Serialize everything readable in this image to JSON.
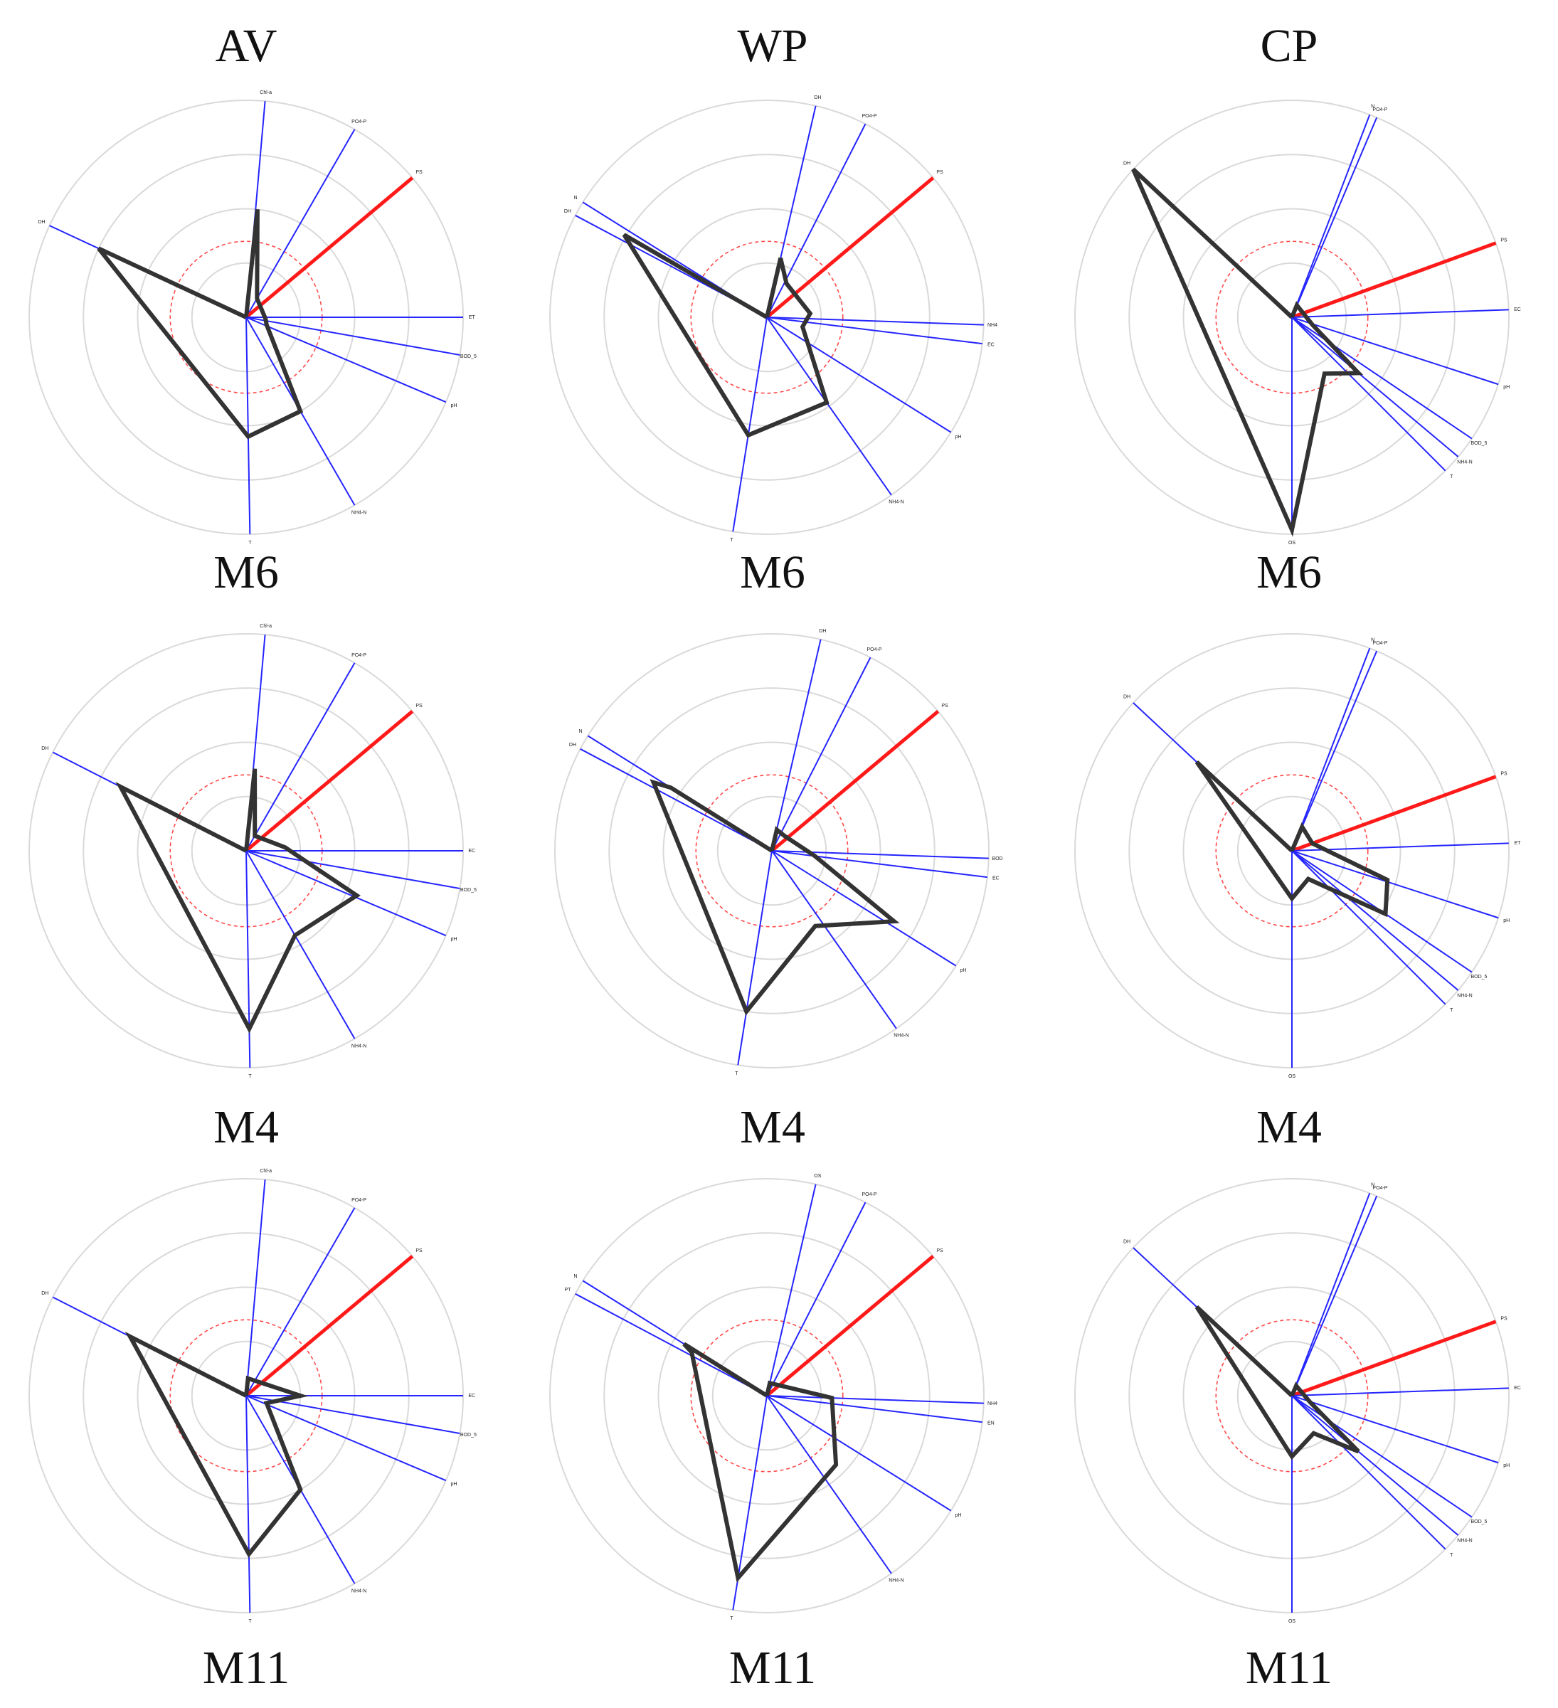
{
  "columns": [
    "AV",
    "WP",
    "CP"
  ],
  "row_labels": [
    "M6",
    "M4",
    "M11"
  ],
  "colors": {
    "grid": "#d9d9d9",
    "axis": "#2525ff",
    "highlight": "#ff1a1a",
    "polygon": "#333333",
    "threshold": "#ff4a4a"
  },
  "chart_data": [
    {
      "type": "radar",
      "column": "AV",
      "model": "M6",
      "highlight_axis": "PS",
      "axes": [
        {
          "name": "Chl-a",
          "angle": 85
        },
        {
          "name": "PO4-P",
          "angle": 60
        },
        {
          "name": "PS",
          "angle": 40
        },
        {
          "name": "ET",
          "angle": 0
        },
        {
          "name": "BOD_5",
          "angle": -10
        },
        {
          "name": "pH",
          "angle": -23
        },
        {
          "name": "NH4-N",
          "angle": -60
        },
        {
          "name": "T",
          "angle": -89
        },
        {
          "name": "DH",
          "angle": 155
        }
      ],
      "values": [
        {
          "angle": 84,
          "r": 0.5
        },
        {
          "angle": 60,
          "r": 0.1
        },
        {
          "angle": -5,
          "r": 0.09
        },
        {
          "angle": -20,
          "r": 0.1
        },
        {
          "angle": -60,
          "r": 0.5
        },
        {
          "angle": -89,
          "r": 0.55
        },
        {
          "angle": 155,
          "r": 0.75
        }
      ]
    },
    {
      "type": "radar",
      "column": "WP",
      "model": "M6",
      "highlight_axis": "PS",
      "axes": [
        {
          "name": "DH",
          "angle": 77
        },
        {
          "name": "PO4-P",
          "angle": 63
        },
        {
          "name": "PS",
          "angle": 40
        },
        {
          "name": "NH4",
          "angle": -2
        },
        {
          "name": "EC",
          "angle": -7
        },
        {
          "name": "pH",
          "angle": -32
        },
        {
          "name": "NH4-N",
          "angle": -55
        },
        {
          "name": "T",
          "angle": -99
        },
        {
          "name": "DH",
          "angle": 152
        },
        {
          "name": "N",
          "angle": 148
        }
      ],
      "values": [
        {
          "angle": 77,
          "r": 0.28
        },
        {
          "angle": 60,
          "r": 0.18
        },
        {
          "angle": 5,
          "r": 0.2
        },
        {
          "angle": -15,
          "r": 0.17
        },
        {
          "angle": -55,
          "r": 0.48
        },
        {
          "angle": -99,
          "r": 0.55
        },
        {
          "angle": 150,
          "r": 0.76
        }
      ]
    },
    {
      "type": "radar",
      "column": "CP",
      "model": "M6",
      "highlight_axis": "PS",
      "axes": [
        {
          "name": "N",
          "angle": 69
        },
        {
          "name": "PO4-P",
          "angle": 67
        },
        {
          "name": "PS",
          "angle": 20
        },
        {
          "name": "EC",
          "angle": 2
        },
        {
          "name": "pH",
          "angle": -18
        },
        {
          "name": "BOD_5",
          "angle": -34
        },
        {
          "name": "NH4-N",
          "angle": -40
        },
        {
          "name": "T",
          "angle": -45
        },
        {
          "name": "OS",
          "angle": -90
        },
        {
          "name": "DH",
          "angle": 137
        }
      ],
      "values": [
        {
          "angle": 68,
          "r": 0.06
        },
        {
          "angle": -20,
          "r": 0.1
        },
        {
          "angle": -40,
          "r": 0.4
        },
        {
          "angle": -60,
          "r": 0.3
        },
        {
          "angle": -90,
          "r": 0.98
        },
        {
          "angle": 137,
          "r": 1.0
        }
      ]
    },
    {
      "type": "radar",
      "column": "AV",
      "model": "M4",
      "highlight_axis": "PS",
      "axes": [
        {
          "name": "Chl-a",
          "angle": 85
        },
        {
          "name": "PO4-P",
          "angle": 60
        },
        {
          "name": "PS",
          "angle": 40
        },
        {
          "name": "EC",
          "angle": 0
        },
        {
          "name": "BOD_5",
          "angle": -10
        },
        {
          "name": "pH",
          "angle": -23
        },
        {
          "name": "NH4-N",
          "angle": -60
        },
        {
          "name": "T",
          "angle": -89
        },
        {
          "name": "DH",
          "angle": 153
        }
      ],
      "values": [
        {
          "angle": 84,
          "r": 0.38
        },
        {
          "angle": 60,
          "r": 0.08
        },
        {
          "angle": 5,
          "r": 0.18
        },
        {
          "angle": -22,
          "r": 0.55
        },
        {
          "angle": -60,
          "r": 0.45
        },
        {
          "angle": -89,
          "r": 0.82
        },
        {
          "angle": 153,
          "r": 0.65
        }
      ]
    },
    {
      "type": "radar",
      "column": "WP",
      "model": "M4",
      "highlight_axis": "PS",
      "axes": [
        {
          "name": "DH",
          "angle": 77
        },
        {
          "name": "PO4-P",
          "angle": 63
        },
        {
          "name": "PS",
          "angle": 40
        },
        {
          "name": "BOD",
          "angle": -2
        },
        {
          "name": "EC",
          "angle": -7
        },
        {
          "name": "pH",
          "angle": -32
        },
        {
          "name": "NH4-N",
          "angle": -55
        },
        {
          "name": "T",
          "angle": -99
        },
        {
          "name": "DH",
          "angle": 152
        },
        {
          "name": "N",
          "angle": 148
        }
      ],
      "values": [
        {
          "angle": 77,
          "r": 0.1
        },
        {
          "angle": 50,
          "r": 0.09
        },
        {
          "angle": -7,
          "r": 0.2
        },
        {
          "angle": -30,
          "r": 0.65
        },
        {
          "angle": -60,
          "r": 0.4
        },
        {
          "angle": -99,
          "r": 0.75
        },
        {
          "angle": 150,
          "r": 0.63
        },
        {
          "angle": 148,
          "r": 0.55
        }
      ]
    },
    {
      "type": "radar",
      "column": "CP",
      "model": "M4",
      "highlight_axis": "PS",
      "axes": [
        {
          "name": "N",
          "angle": 69
        },
        {
          "name": "PO4-P",
          "angle": 67
        },
        {
          "name": "PS",
          "angle": 20
        },
        {
          "name": "ET",
          "angle": 2
        },
        {
          "name": "pH",
          "angle": -18
        },
        {
          "name": "BOD_5",
          "angle": -34
        },
        {
          "name": "NH4-N",
          "angle": -40
        },
        {
          "name": "T",
          "angle": -45
        },
        {
          "name": "OS",
          "angle": -90
        },
        {
          "name": "DH",
          "angle": 137
        }
      ],
      "values": [
        {
          "angle": 67,
          "r": 0.12
        },
        {
          "angle": 20,
          "r": 0.1
        },
        {
          "angle": -17,
          "r": 0.46
        },
        {
          "angle": -34,
          "r": 0.52
        },
        {
          "angle": -60,
          "r": 0.15
        },
        {
          "angle": -90,
          "r": 0.22
        },
        {
          "angle": 137,
          "r": 0.6
        }
      ]
    },
    {
      "type": "radar",
      "column": "AV",
      "model": "M11",
      "highlight_axis": "PS",
      "axes": [
        {
          "name": "Chl-a",
          "angle": 85
        },
        {
          "name": "PO4-P",
          "angle": 60
        },
        {
          "name": "PS",
          "angle": 40
        },
        {
          "name": "EC",
          "angle": 0
        },
        {
          "name": "BOD_5",
          "angle": -10
        },
        {
          "name": "pH",
          "angle": -23
        },
        {
          "name": "NH4-N",
          "angle": -60
        },
        {
          "name": "T",
          "angle": -89
        },
        {
          "name": "DH",
          "angle": 153
        }
      ],
      "values": [
        {
          "angle": 84,
          "r": 0.08
        },
        {
          "angle": 0,
          "r": 0.25
        },
        {
          "angle": -20,
          "r": 0.1
        },
        {
          "angle": -60,
          "r": 0.5
        },
        {
          "angle": -89,
          "r": 0.73
        },
        {
          "angle": 153,
          "r": 0.6
        }
      ]
    },
    {
      "type": "radar",
      "column": "WP",
      "model": "M11",
      "highlight_axis": "PS",
      "axes": [
        {
          "name": "OS",
          "angle": 77
        },
        {
          "name": "PO4-P",
          "angle": 63
        },
        {
          "name": "PS",
          "angle": 40
        },
        {
          "name": "NH4",
          "angle": -2
        },
        {
          "name": "EN",
          "angle": -7
        },
        {
          "name": "pH",
          "angle": -32
        },
        {
          "name": "NH4-N",
          "angle": -55
        },
        {
          "name": "T",
          "angle": -99
        },
        {
          "name": "PT",
          "angle": 152
        },
        {
          "name": "N",
          "angle": 148
        }
      ],
      "values": [
        {
          "angle": 77,
          "r": 0.06
        },
        {
          "angle": -2,
          "r": 0.3
        },
        {
          "angle": -45,
          "r": 0.45
        },
        {
          "angle": -99,
          "r": 0.85
        },
        {
          "angle": 150,
          "r": 0.4
        },
        {
          "angle": 148,
          "r": 0.45
        }
      ]
    },
    {
      "type": "radar",
      "column": "CP",
      "model": "M11",
      "highlight_axis": "PS",
      "axes": [
        {
          "name": "N",
          "angle": 69
        },
        {
          "name": "PO4-P",
          "angle": 67
        },
        {
          "name": "PS",
          "angle": 20
        },
        {
          "name": "EC",
          "angle": 2
        },
        {
          "name": "pH",
          "angle": -18
        },
        {
          "name": "BOD_5",
          "angle": -34
        },
        {
          "name": "NH4-N",
          "angle": -40
        },
        {
          "name": "T",
          "angle": -45
        },
        {
          "name": "OS",
          "angle": -90
        },
        {
          "name": "DH",
          "angle": 137
        }
      ],
      "values": [
        {
          "angle": 67,
          "r": 0.05
        },
        {
          "angle": -20,
          "r": 0.09
        },
        {
          "angle": -40,
          "r": 0.4
        },
        {
          "angle": -60,
          "r": 0.2
        },
        {
          "angle": -90,
          "r": 0.28
        },
        {
          "angle": 137,
          "r": 0.6
        }
      ]
    }
  ]
}
